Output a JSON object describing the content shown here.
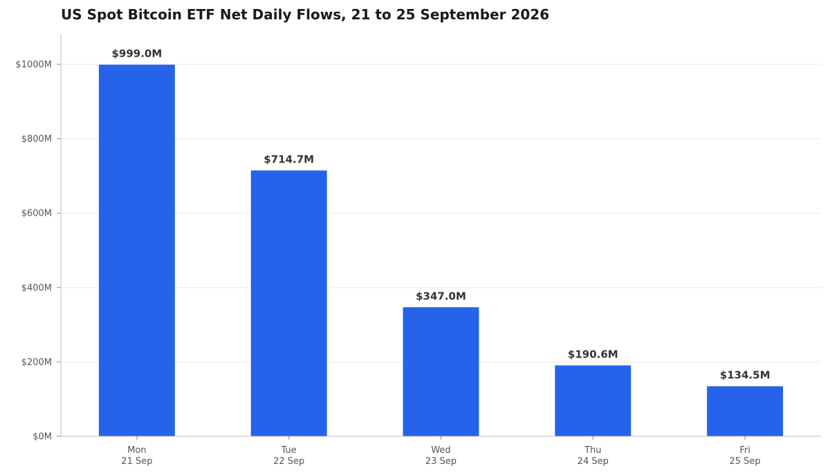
{
  "chart_data": {
    "type": "bar",
    "title": "US Spot Bitcoin ETF Net Daily Flows, 21 to 25 September 2026",
    "xlabel": "",
    "ylabel": "",
    "categories": [
      [
        "Mon",
        "21 Sep"
      ],
      [
        "Tue",
        "22 Sep"
      ],
      [
        "Wed",
        "23 Sep"
      ],
      [
        "Thu",
        "24 Sep"
      ],
      [
        "Fri",
        "25 Sep"
      ]
    ],
    "values": [
      999.0,
      714.7,
      347.0,
      190.6,
      134.5
    ],
    "value_labels": [
      "$999.0M",
      "$714.7M",
      "$347.0M",
      "$190.6M",
      "$134.5M"
    ],
    "yticks": [
      0,
      200,
      400,
      600,
      800,
      1000
    ],
    "ytick_labels": [
      "$0M",
      "$200M",
      "$400M",
      "$600M",
      "$800M",
      "$1000M"
    ],
    "ylim": [
      0,
      1080
    ],
    "grid": true,
    "legend": "none",
    "colors": {
      "bar": "#2563eb"
    }
  }
}
